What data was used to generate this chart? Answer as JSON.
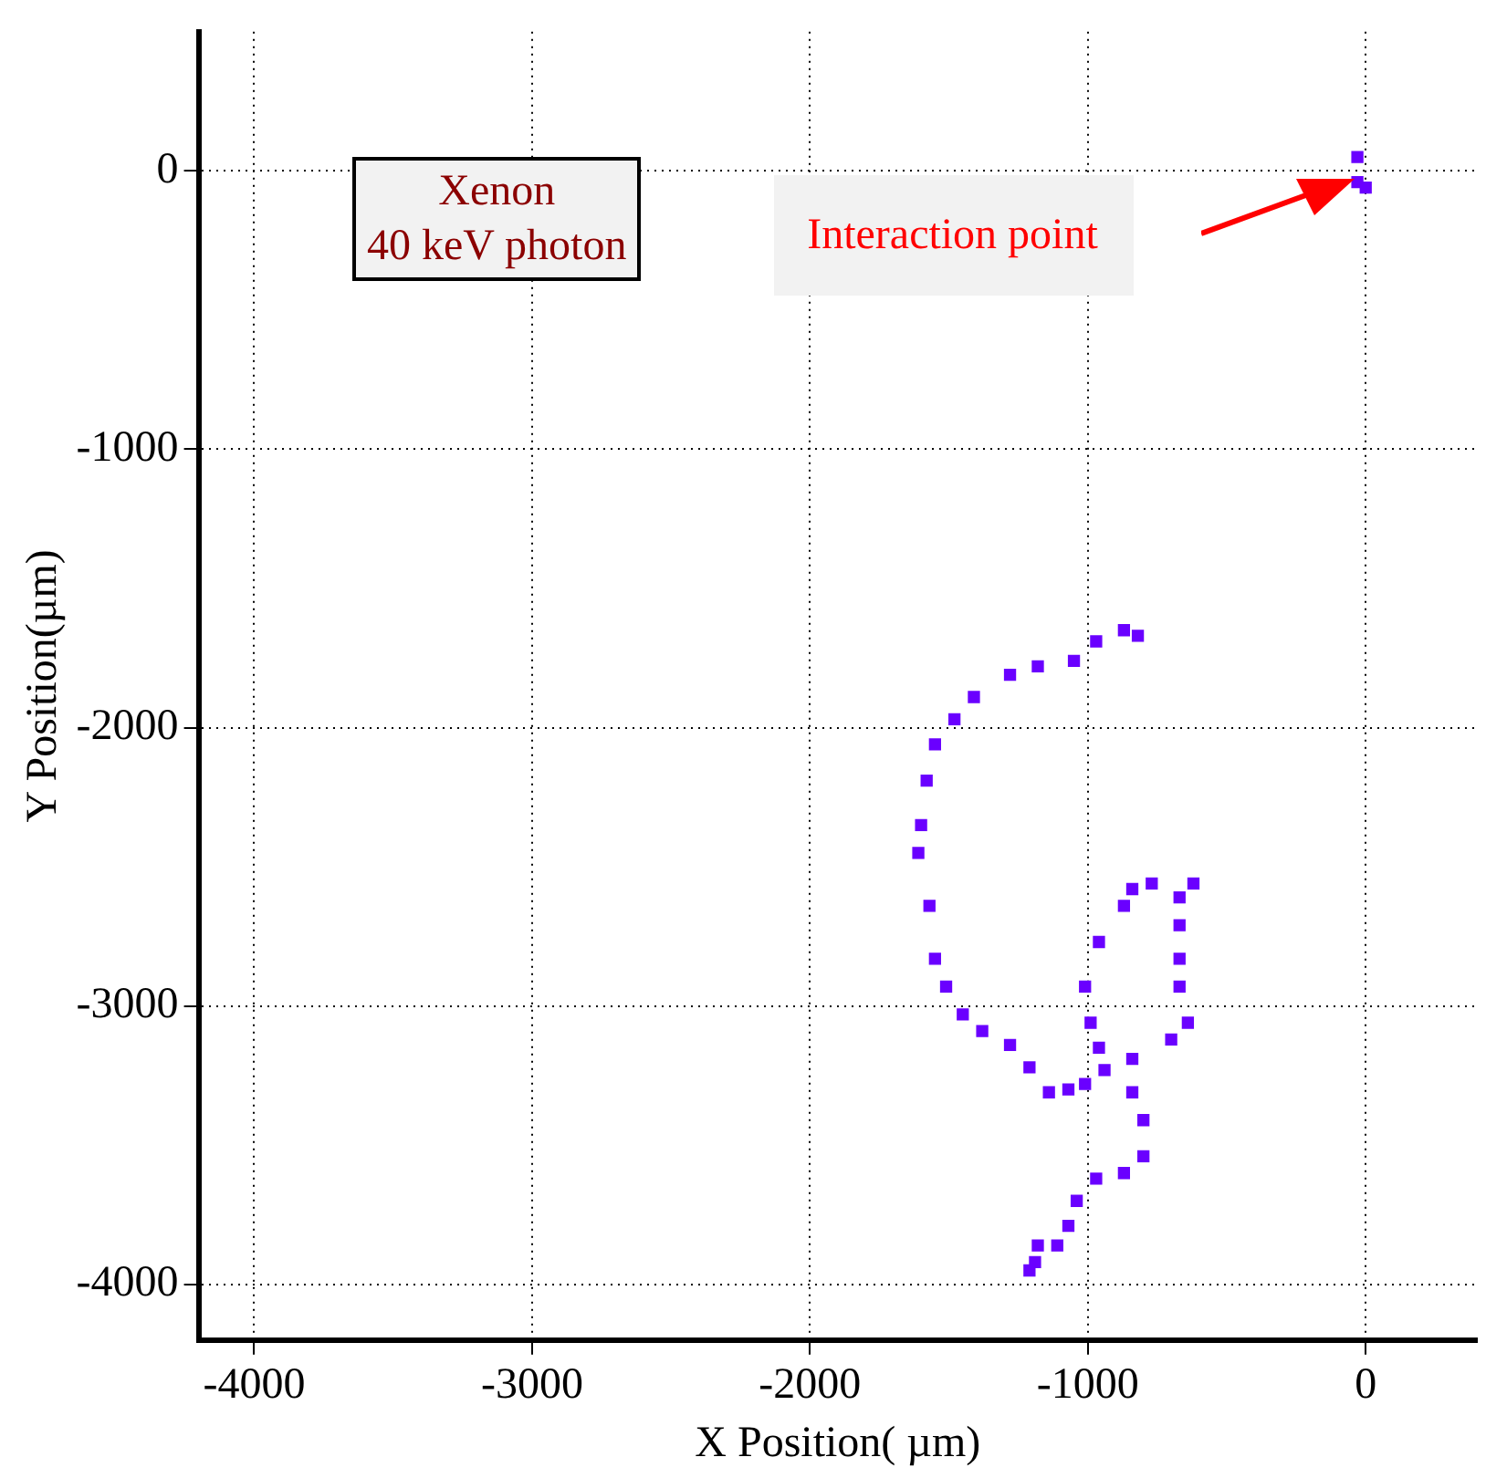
{
  "chart_data": {
    "type": "scatter",
    "xlabel": "X Position( µm)",
    "ylabel": "Y Position(µm)",
    "xlim": [
      -4200,
      400
    ],
    "ylim": [
      -4200,
      500
    ],
    "xticks": [
      -4000,
      -3000,
      -2000,
      -1000,
      0
    ],
    "yticks": [
      -4000,
      -3000,
      -2000,
      -1000,
      0
    ],
    "grid": true,
    "marker": "square",
    "legend": false,
    "annotations": [
      "Xenon\n40 keV photon",
      "Interaction point"
    ],
    "series": [
      {
        "color": "#6a00ff",
        "x": [
          -30,
          -30,
          0,
          -870,
          -820,
          -970,
          -1050,
          -1180,
          -1280,
          -1410,
          -1480,
          -1550,
          -1580,
          -1600,
          -1610,
          -1570,
          -1550,
          -1510,
          -1450,
          -1380,
          -1280,
          -1210,
          -1140,
          -1070,
          -1010,
          -960,
          -990,
          -1010,
          -960,
          -870,
          -840,
          -770,
          -670,
          -620,
          -670,
          -670,
          -670,
          -640,
          -700,
          -840,
          -940,
          -840,
          -800,
          -800,
          -870,
          -970,
          -1040,
          -1070,
          -1110,
          -1180,
          -1190,
          -1210
        ],
        "values": [
          50,
          -40,
          -60,
          -1650,
          -1670,
          -1690,
          -1760,
          -1780,
          -1810,
          -1890,
          -1970,
          -2060,
          -2190,
          -2350,
          -2450,
          -2640,
          -2830,
          -2930,
          -3030,
          -3090,
          -3140,
          -3220,
          -3310,
          -3300,
          -3280,
          -3150,
          -3060,
          -2930,
          -2770,
          -2640,
          -2580,
          -2560,
          -2610,
          -2560,
          -2710,
          -2830,
          -2930,
          -3060,
          -3120,
          -3190,
          -3230,
          -3310,
          -3410,
          -3540,
          -3600,
          -3620,
          -3700,
          -3790,
          -3860,
          -3860,
          -3920,
          -3950
        ]
      }
    ]
  }
}
